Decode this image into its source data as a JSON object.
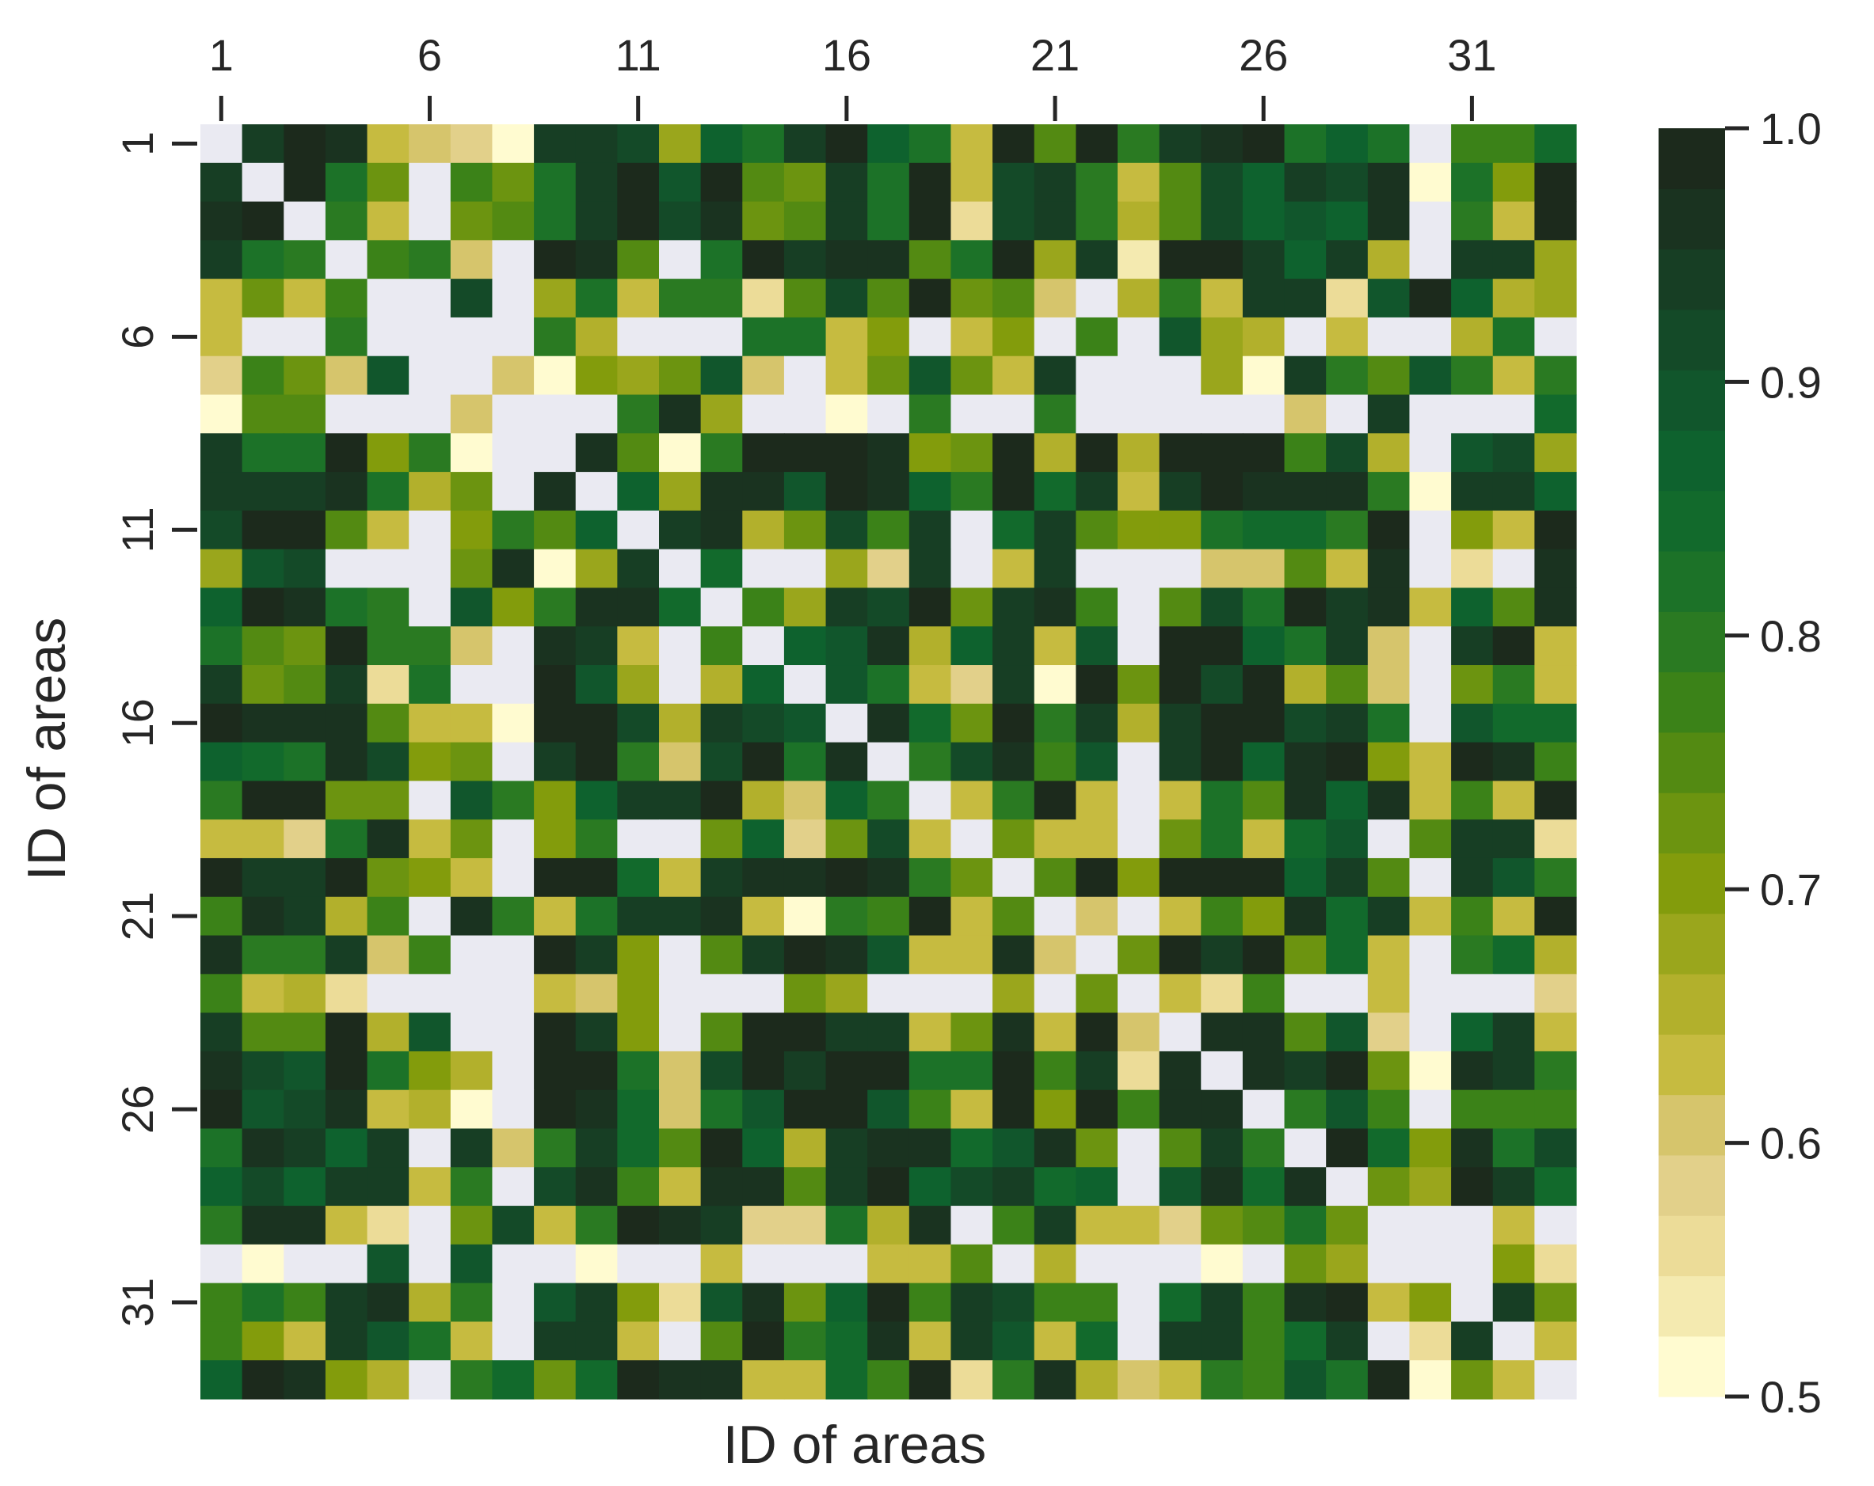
{
  "chart_data": {
    "type": "heatmap",
    "title": "",
    "xlabel": "ID of areas",
    "ylabel": "ID of areas",
    "n_rows": 33,
    "n_cols": 33,
    "x_axis_position": "top",
    "x_ticks": [
      "1",
      "6",
      "11",
      "16",
      "21",
      "26",
      "31"
    ],
    "y_ticks": [
      "1",
      "6",
      "11",
      "16",
      "21",
      "26",
      "31"
    ],
    "tick_ids": [
      1,
      6,
      11,
      16,
      21,
      26,
      31
    ],
    "colorbar": {
      "range": [
        0.5,
        1.0
      ],
      "ticks": [
        "0.5",
        "0.6",
        "0.7",
        "0.8",
        "0.9",
        "1.0"
      ],
      "tick_values": [
        0.5,
        0.6,
        0.7,
        0.8,
        0.9,
        1.0
      ],
      "colors": [
        "#fffbd0",
        "#f4eab0",
        "#ecdc98",
        "#e2d08a",
        "#d6c56c",
        "#c6bb40",
        "#b2b02c",
        "#9aa61c",
        "#839c0c",
        "#6c9410",
        "#538a12",
        "#3b8218",
        "#2a7a22",
        "#1c7228",
        "#126a2c",
        "#0e622e",
        "#11562c",
        "#144a28",
        "#173e24",
        "#1a3320",
        "#1c2a1c"
      ],
      "missing_color": "#eaeaf2"
    },
    "grid": false,
    "legend": "colorbar-right",
    "value_note": "approximate values read from cell colors; null = no value (blank light cells)",
    "values": [
      [
        null,
        0.94,
        0.98,
        0.96,
        0.63,
        0.61,
        0.58,
        0.51,
        0.95,
        0.95,
        0.91,
        0.68,
        0.86,
        0.83,
        0.94,
        0.98,
        0.87,
        0.81,
        0.62,
        0.98,
        0.74,
        0.98,
        0.79,
        0.95,
        0.96,
        0.98,
        0.81,
        0.86,
        0.81,
        null,
        0.77,
        0.77,
        0.84
      ],
      [
        0.94,
        null,
        0.98,
        0.81,
        0.72,
        null,
        0.77,
        0.73,
        0.81,
        0.93,
        0.98,
        0.89,
        0.98,
        0.75,
        0.72,
        0.94,
        0.83,
        0.98,
        0.62,
        0.92,
        0.94,
        0.8,
        0.63,
        0.74,
        0.91,
        0.88,
        0.94,
        0.91,
        0.96,
        0.52,
        0.82,
        0.7,
        0.98
      ],
      [
        0.96,
        0.98,
        null,
        0.79,
        0.64,
        null,
        0.72,
        0.74,
        0.81,
        0.94,
        0.98,
        0.91,
        0.96,
        0.72,
        0.76,
        0.94,
        0.81,
        0.98,
        0.56,
        0.92,
        0.94,
        0.8,
        0.66,
        0.74,
        0.91,
        0.88,
        0.9,
        0.88,
        0.96,
        null,
        0.79,
        0.64,
        0.98
      ],
      [
        0.93,
        0.81,
        0.79,
        null,
        0.78,
        0.8,
        0.61,
        null,
        0.99,
        0.97,
        0.75,
        null,
        0.82,
        0.99,
        0.94,
        0.97,
        0.97,
        0.74,
        0.82,
        0.98,
        0.68,
        0.95,
        0.54,
        0.99,
        0.99,
        0.95,
        0.86,
        0.95,
        0.66,
        null,
        0.94,
        0.94,
        0.68
      ],
      [
        0.63,
        0.72,
        0.64,
        0.78,
        null,
        null,
        0.91,
        null,
        0.68,
        0.81,
        0.62,
        0.8,
        0.8,
        0.55,
        0.75,
        0.91,
        0.74,
        0.99,
        0.72,
        0.76,
        0.61,
        null,
        0.66,
        0.8,
        0.62,
        0.94,
        0.94,
        0.55,
        0.9,
        0.98,
        0.88,
        0.66,
        0.68
      ],
      [
        0.62,
        null,
        null,
        0.79,
        null,
        null,
        null,
        null,
        0.79,
        0.66,
        null,
        null,
        null,
        0.81,
        0.81,
        0.64,
        0.71,
        null,
        0.62,
        0.71,
        null,
        0.77,
        null,
        0.89,
        0.69,
        0.66,
        null,
        0.64,
        null,
        null,
        0.65,
        0.81,
        null
      ],
      [
        0.58,
        0.77,
        0.72,
        0.61,
        0.9,
        null,
        null,
        0.6,
        0.52,
        0.71,
        0.69,
        0.72,
        0.9,
        0.6,
        null,
        0.64,
        0.72,
        0.9,
        0.72,
        0.63,
        0.95,
        null,
        null,
        null,
        0.67,
        0.52,
        0.94,
        0.79,
        0.74,
        0.9,
        0.79,
        0.62,
        0.8
      ],
      [
        0.52,
        0.74,
        0.74,
        null,
        null,
        null,
        0.6,
        null,
        null,
        null,
        0.79,
        0.97,
        0.68,
        null,
        null,
        0.52,
        null,
        0.79,
        null,
        null,
        0.8,
        null,
        null,
        null,
        null,
        null,
        0.61,
        null,
        0.94,
        null,
        null,
        null,
        0.84
      ],
      [
        0.95,
        0.81,
        0.81,
        0.98,
        0.7,
        0.79,
        0.52,
        null,
        null,
        0.97,
        0.75,
        0.52,
        0.8,
        0.98,
        0.98,
        0.98,
        0.96,
        0.71,
        0.73,
        0.99,
        0.65,
        0.98,
        0.66,
        0.98,
        0.98,
        0.98,
        0.78,
        0.91,
        0.65,
        null,
        0.89,
        0.92,
        0.69
      ],
      [
        0.95,
        0.93,
        0.94,
        0.97,
        0.81,
        0.66,
        0.72,
        null,
        0.97,
        null,
        0.88,
        0.67,
        0.96,
        0.96,
        0.89,
        0.99,
        0.97,
        0.86,
        0.79,
        0.98,
        0.84,
        0.95,
        0.62,
        0.95,
        0.99,
        0.96,
        0.96,
        0.96,
        0.79,
        0.52,
        0.95,
        0.94,
        0.86
      ],
      [
        0.91,
        0.98,
        0.98,
        0.74,
        0.62,
        null,
        0.71,
        0.79,
        0.75,
        0.88,
        null,
        0.94,
        0.96,
        0.66,
        0.72,
        0.91,
        0.77,
        0.94,
        null,
        0.84,
        0.94,
        0.74,
        0.7,
        0.7,
        0.82,
        0.85,
        0.85,
        0.8,
        0.99,
        null,
        0.71,
        0.63,
        0.99
      ],
      [
        0.68,
        0.89,
        0.91,
        null,
        null,
        null,
        0.72,
        0.97,
        0.52,
        0.67,
        0.94,
        null,
        0.84,
        null,
        null,
        0.68,
        0.58,
        0.95,
        null,
        0.64,
        0.94,
        null,
        null,
        null,
        0.61,
        0.61,
        0.74,
        0.64,
        0.96,
        null,
        0.56,
        null,
        0.96
      ],
      [
        0.86,
        0.98,
        0.96,
        0.82,
        0.8,
        null,
        0.89,
        0.7,
        0.8,
        0.96,
        0.96,
        0.84,
        null,
        0.77,
        0.68,
        0.94,
        0.91,
        0.99,
        0.72,
        0.94,
        0.97,
        0.77,
        null,
        0.74,
        0.92,
        0.82,
        0.98,
        0.93,
        0.96,
        0.62,
        0.86,
        0.76,
        0.96
      ],
      [
        0.83,
        0.74,
        0.72,
        0.99,
        0.8,
        0.8,
        0.61,
        null,
        0.97,
        0.93,
        0.64,
        null,
        0.77,
        null,
        0.87,
        0.9,
        0.97,
        0.66,
        0.88,
        0.94,
        0.64,
        0.9,
        null,
        0.98,
        0.98,
        0.87,
        0.83,
        0.94,
        0.6,
        null,
        0.94,
        0.98,
        0.64
      ],
      [
        0.94,
        0.72,
        0.76,
        0.94,
        0.55,
        0.81,
        null,
        null,
        0.98,
        0.89,
        0.68,
        null,
        0.66,
        0.87,
        null,
        0.9,
        0.81,
        0.62,
        0.58,
        0.95,
        0.51,
        0.98,
        0.72,
        0.98,
        0.91,
        0.98,
        0.66,
        0.76,
        0.6,
        null,
        0.72,
        0.79,
        0.62
      ],
      [
        0.98,
        0.96,
        0.96,
        0.97,
        0.75,
        0.64,
        0.64,
        0.52,
        0.98,
        0.99,
        0.91,
        0.66,
        0.94,
        0.91,
        0.9,
        null,
        0.96,
        0.84,
        0.72,
        0.98,
        0.8,
        0.95,
        0.66,
        0.94,
        0.99,
        0.99,
        0.91,
        0.94,
        0.81,
        null,
        0.89,
        0.85,
        0.85
      ],
      [
        0.88,
        0.85,
        0.81,
        0.97,
        0.91,
        0.7,
        0.72,
        null,
        0.94,
        0.98,
        0.79,
        0.6,
        0.92,
        0.98,
        0.82,
        0.96,
        null,
        0.8,
        0.92,
        0.96,
        0.78,
        0.89,
        null,
        0.94,
        0.98,
        0.88,
        0.96,
        0.98,
        0.7,
        0.62,
        0.98,
        0.96,
        0.77
      ],
      [
        0.8,
        0.98,
        0.98,
        0.72,
        0.72,
        null,
        0.89,
        0.79,
        0.7,
        0.86,
        0.94,
        0.94,
        0.99,
        0.66,
        0.6,
        0.86,
        0.8,
        null,
        0.62,
        0.79,
        0.99,
        0.64,
        null,
        0.64,
        0.82,
        0.76,
        0.96,
        0.86,
        0.97,
        0.62,
        0.77,
        0.64,
        0.99
      ],
      [
        0.63,
        0.63,
        0.58,
        0.82,
        0.97,
        0.64,
        0.72,
        null,
        0.71,
        0.8,
        null,
        null,
        0.72,
        0.88,
        0.58,
        0.72,
        0.91,
        0.62,
        null,
        0.72,
        0.64,
        0.64,
        null,
        0.72,
        0.82,
        0.62,
        0.84,
        0.9,
        null,
        0.76,
        0.95,
        0.95,
        0.56
      ],
      [
        0.99,
        0.93,
        0.93,
        0.98,
        0.72,
        0.7,
        0.63,
        null,
        0.98,
        0.98,
        0.84,
        0.64,
        0.94,
        0.96,
        0.96,
        0.98,
        0.96,
        0.79,
        0.73,
        null,
        0.74,
        0.98,
        0.7,
        0.98,
        0.99,
        0.99,
        0.86,
        0.94,
        0.76,
        null,
        0.93,
        0.89,
        0.8
      ],
      [
        0.77,
        0.96,
        0.94,
        0.66,
        0.78,
        null,
        0.96,
        0.79,
        0.64,
        0.81,
        0.94,
        0.94,
        0.96,
        0.64,
        0.52,
        0.79,
        0.77,
        0.98,
        0.62,
        0.76,
        null,
        0.61,
        null,
        0.62,
        0.77,
        0.71,
        0.96,
        0.84,
        0.94,
        0.64,
        0.78,
        0.62,
        0.98
      ],
      [
        0.97,
        0.8,
        0.8,
        0.95,
        0.61,
        0.77,
        null,
        null,
        0.98,
        0.95,
        0.71,
        null,
        0.74,
        0.94,
        0.98,
        0.96,
        0.89,
        0.64,
        0.62,
        0.97,
        0.61,
        null,
        0.73,
        0.98,
        0.94,
        0.98,
        0.72,
        0.84,
        0.62,
        null,
        0.8,
        0.84,
        0.66
      ],
      [
        0.78,
        0.63,
        0.66,
        0.55,
        null,
        null,
        null,
        null,
        0.63,
        0.61,
        0.71,
        null,
        null,
        null,
        0.73,
        0.68,
        null,
        null,
        null,
        0.68,
        null,
        0.73,
        null,
        0.62,
        0.56,
        0.78,
        null,
        null,
        0.62,
        null,
        null,
        null,
        0.59
      ],
      [
        0.94,
        0.74,
        0.74,
        0.98,
        0.66,
        0.9,
        null,
        null,
        0.98,
        0.94,
        0.71,
        null,
        0.74,
        0.98,
        0.98,
        0.94,
        0.94,
        0.64,
        0.72,
        0.97,
        0.62,
        0.98,
        0.61,
        null,
        0.96,
        0.96,
        0.74,
        0.9,
        0.59,
        null,
        0.86,
        0.93,
        0.64
      ],
      [
        0.96,
        0.91,
        0.89,
        0.98,
        0.82,
        0.7,
        0.66,
        null,
        0.98,
        0.99,
        0.82,
        0.61,
        0.92,
        0.98,
        0.94,
        0.99,
        0.99,
        0.82,
        0.82,
        0.98,
        0.77,
        0.94,
        0.56,
        0.96,
        null,
        0.96,
        0.94,
        0.98,
        0.72,
        0.52,
        0.96,
        0.93,
        0.79
      ],
      [
        0.99,
        0.9,
        0.92,
        0.96,
        0.62,
        0.66,
        0.52,
        null,
        0.98,
        0.96,
        0.85,
        0.61,
        0.82,
        0.9,
        0.98,
        0.98,
        0.89,
        0.77,
        0.64,
        0.98,
        0.71,
        0.98,
        0.78,
        0.96,
        0.96,
        null,
        0.79,
        0.9,
        0.77,
        null,
        0.78,
        0.78,
        0.77
      ],
      [
        0.82,
        0.96,
        0.93,
        0.86,
        0.94,
        null,
        0.94,
        0.61,
        0.79,
        0.95,
        0.84,
        0.75,
        0.99,
        0.86,
        0.66,
        0.93,
        0.96,
        0.96,
        0.84,
        0.9,
        0.96,
        0.73,
        null,
        0.75,
        0.94,
        0.79,
        null,
        0.98,
        0.84,
        0.71,
        0.96,
        0.81,
        0.92
      ],
      [
        0.86,
        0.92,
        0.86,
        0.95,
        0.94,
        0.62,
        0.79,
        null,
        0.91,
        0.96,
        0.78,
        0.63,
        0.97,
        0.97,
        0.75,
        0.94,
        0.99,
        0.86,
        0.91,
        0.93,
        0.84,
        0.86,
        null,
        0.89,
        0.97,
        0.84,
        0.96,
        null,
        0.72,
        0.68,
        0.98,
        0.93,
        0.84
      ],
      [
        0.8,
        0.97,
        0.97,
        0.64,
        0.56,
        null,
        0.72,
        0.91,
        0.64,
        0.79,
        0.98,
        0.97,
        0.94,
        0.58,
        0.58,
        0.82,
        0.66,
        0.97,
        null,
        0.78,
        0.93,
        0.64,
        0.63,
        0.59,
        0.72,
        0.76,
        0.82,
        0.72,
        null,
        null,
        null,
        0.62,
        null
      ],
      [
        null,
        0.52,
        null,
        null,
        0.9,
        null,
        0.9,
        null,
        null,
        0.52,
        null,
        null,
        0.64,
        null,
        null,
        null,
        0.62,
        0.62,
        0.76,
        null,
        0.66,
        null,
        null,
        null,
        0.51,
        null,
        0.72,
        0.68,
        null,
        null,
        null,
        0.71,
        0.56
      ],
      [
        0.77,
        0.82,
        0.78,
        0.95,
        0.97,
        0.65,
        0.8,
        null,
        0.89,
        0.95,
        0.7,
        0.56,
        0.9,
        0.96,
        0.73,
        0.88,
        0.98,
        0.78,
        0.94,
        0.91,
        0.78,
        0.78,
        null,
        0.84,
        0.95,
        0.78,
        0.96,
        0.98,
        0.64,
        0.7,
        null,
        0.95,
        0.72
      ],
      [
        0.78,
        0.7,
        0.64,
        0.95,
        0.9,
        0.81,
        0.62,
        null,
        0.94,
        0.94,
        0.62,
        null,
        0.76,
        0.99,
        0.79,
        0.84,
        0.97,
        0.64,
        0.95,
        0.9,
        0.62,
        0.84,
        null,
        0.94,
        0.94,
        0.78,
        0.84,
        0.95,
        null,
        0.56,
        0.95,
        null,
        0.62
      ],
      [
        0.86,
        0.98,
        0.96,
        0.7,
        0.66,
        null,
        0.8,
        0.85,
        0.72,
        0.85,
        0.98,
        0.96,
        0.97,
        0.64,
        0.62,
        0.84,
        0.78,
        0.99,
        0.56,
        0.8,
        0.97,
        0.66,
        0.6,
        0.64,
        0.8,
        0.78,
        0.89,
        0.82,
        0.99,
        0.52,
        0.73,
        0.62,
        null
      ]
    ]
  }
}
